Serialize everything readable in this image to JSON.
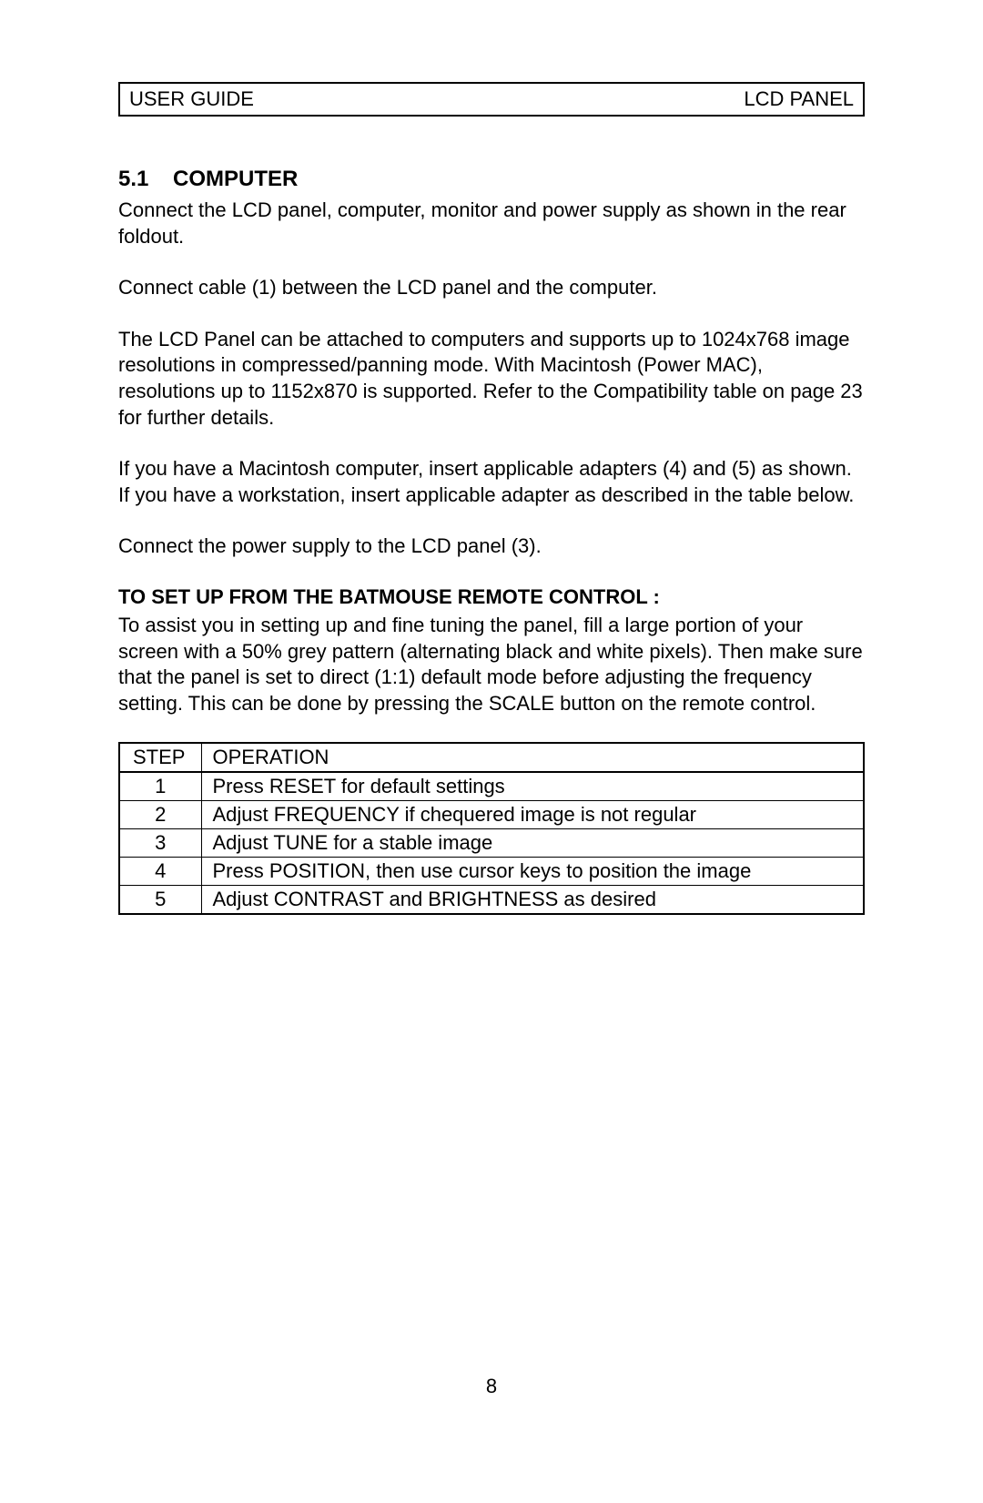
{
  "header": {
    "left": "USER GUIDE",
    "right": "LCD PANEL"
  },
  "section": {
    "number": "5.1",
    "title": "COMPUTER"
  },
  "paragraphs": {
    "p1": "Connect the LCD panel, computer, monitor and power supply as shown in the rear foldout.",
    "p2": "Connect cable (1) between the LCD panel and the computer.",
    "p3": "The LCD Panel can be attached to computers and supports up to 1024x768 image resolutions in compressed/panning mode. With Macintosh (Power MAC), resolutions up to 1152x870 is supported. Refer to the Compatibility table on page 23 for further details.",
    "p4": "If you have a Macintosh computer, insert applicable adapters (4) and (5) as shown. If you have a workstation, insert applicable adapter as described in the table below.",
    "p5": "Connect the power supply to the LCD panel (3)."
  },
  "subheading": "TO SET UP FROM THE BATMOUSE REMOTE CONTROL :",
  "setupParagraph": "To assist you in setting up and fine tuning the panel, fill a large portion of your screen with a 50% grey pattern (alternating black and white pixels). Then make sure that the panel is set to direct (1:1) default mode before adjusting the frequency setting. This can be done by pressing the SCALE button on the remote control.",
  "table": {
    "columns": {
      "step": "STEP",
      "operation": "OPERATION"
    },
    "rows": [
      {
        "step": "1",
        "operation": "Press RESET for default settings"
      },
      {
        "step": "2",
        "operation": "Adjust FREQUENCY if chequered image is not regular"
      },
      {
        "step": "3",
        "operation": "Adjust TUNE for a stable image"
      },
      {
        "step": "4",
        "operation": "Press POSITION, then use cursor keys to position the image"
      },
      {
        "step": "5",
        "operation": "Adjust CONTRAST and  BRIGHTNESS as desired"
      }
    ]
  },
  "pageNumber": "8",
  "styling": {
    "background_color": "#ffffff",
    "text_color": "#000000",
    "border_color": "#000000",
    "body_fontsize": 22,
    "title_fontsize": 24,
    "font_family": "Arial, Helvetica, sans-serif"
  }
}
